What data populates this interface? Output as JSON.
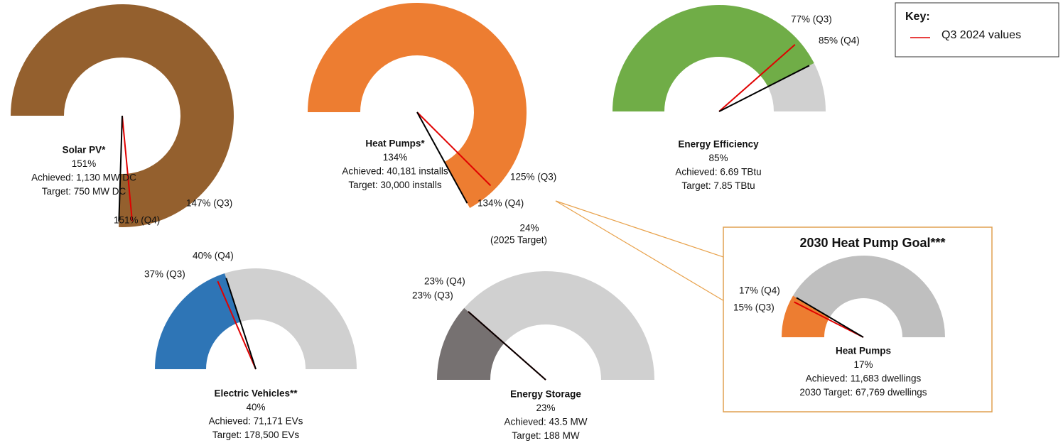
{
  "legend": {
    "title": "Key:",
    "entries": [
      {
        "label": "Q3 2024 values",
        "color": "#e00000"
      }
    ]
  },
  "chart_data": [
    {
      "type": "gauge",
      "title": "Solar PV*",
      "value": 151,
      "value_label": "151%",
      "achieved": "Achieved: 1,130 MW DC",
      "target": "Target: 750 MW DC",
      "color": "#94602e",
      "markers": [
        {
          "value": 147,
          "label": "147% (Q3)",
          "color": "#e00000"
        },
        {
          "value": 151,
          "label": "151% (Q4)",
          "color": "#000000"
        }
      ]
    },
    {
      "type": "gauge",
      "title": "Heat Pumps*",
      "value": 134,
      "value_label": "134%",
      "achieved": "Achieved: 40,181 installs",
      "target": "Target: 30,000 installs",
      "color": "#ed7d31",
      "markers": [
        {
          "value": 125,
          "label": "125% (Q3)",
          "color": "#e00000"
        },
        {
          "value": 134,
          "label": "134% (Q4)",
          "color": "#000000"
        }
      ],
      "annotation": [
        "24%",
        "(2025 Target)"
      ]
    },
    {
      "type": "gauge",
      "title": "Energy Efficiency",
      "value": 85,
      "value_label": "85%",
      "achieved": "Achieved: 6.69 TBtu",
      "target": "Target: 7.85 TBtu",
      "color": "#70ad47",
      "markers": [
        {
          "value": 77,
          "label": "77% (Q3)",
          "color": "#e00000"
        },
        {
          "value": 85,
          "label": "85% (Q4)",
          "color": "#000000"
        }
      ]
    },
    {
      "type": "gauge",
      "title": "Electric Vehicles**",
      "value": 40,
      "value_label": "40%",
      "achieved": "Achieved: 71,171 EVs",
      "target": "Target: 178,500 EVs",
      "color": "#2e75b6",
      "markers": [
        {
          "value": 37,
          "label": "37% (Q3)",
          "color": "#e00000"
        },
        {
          "value": 40,
          "label": "40% (Q4)",
          "color": "#000000"
        }
      ]
    },
    {
      "type": "gauge",
      "title": "Energy Storage",
      "value": 23,
      "value_label": "23%",
      "achieved": "Achieved: 43.5 MW",
      "target": "Target: 188 MW",
      "color": "#767171",
      "markers": [
        {
          "value": 23,
          "label": "23% (Q3)",
          "color": "#e00000"
        },
        {
          "value": 23,
          "label": "23% (Q4)",
          "color": "#000000"
        }
      ]
    },
    {
      "type": "gauge",
      "group_title": "2030 Heat Pump Goal***",
      "title": "Heat Pumps",
      "value": 17,
      "value_label": "17%",
      "achieved": "Achieved: 11,683 dwellings",
      "target": "2030 Target: 67,769 dwellings",
      "color": "#ed7d31",
      "markers": [
        {
          "value": 15,
          "label": "15% (Q3)",
          "color": "#e00000"
        },
        {
          "value": 17,
          "label": "17% (Q4)",
          "color": "#000000"
        }
      ]
    }
  ]
}
